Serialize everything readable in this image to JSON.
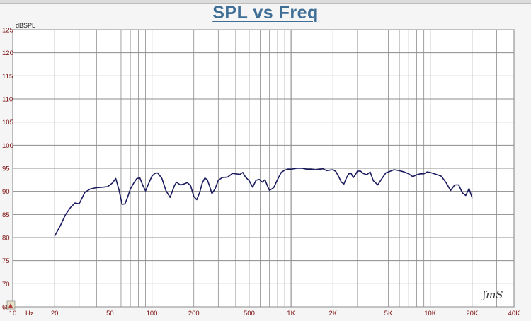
{
  "page": {
    "title": "SPL vs Freq",
    "watermark": "LMS"
  },
  "chart_data": {
    "type": "line",
    "title": "SPL vs Freq",
    "xlabel": "Hz",
    "ylabel": "dBSPL",
    "x_scale": "log",
    "xlim": [
      10,
      40000
    ],
    "ylim": [
      65,
      125
    ],
    "grid": true,
    "x_ticks": [
      10,
      20,
      50,
      100,
      200,
      500,
      1000,
      2000,
      5000,
      10000,
      20000,
      40000
    ],
    "x_tick_labels": [
      "10",
      "20",
      "50",
      "100",
      "200",
      "500",
      "1K",
      "2K",
      "5K",
      "10K",
      "20K",
      "40K"
    ],
    "y_ticks": [
      65,
      70,
      75,
      80,
      85,
      90,
      95,
      100,
      105,
      110,
      115,
      120,
      125
    ],
    "y_tick_labels": [
      "65",
      "70",
      "75",
      "80",
      "85",
      "90",
      "95",
      "100",
      "105",
      "110",
      "115",
      "120",
      "125"
    ],
    "colors": {
      "line": "#1a1a5e",
      "grid": "#8c8c8c",
      "ticks": "#7a0c0c",
      "title": "#3f6e96",
      "plot_bg": "#ffffff"
    },
    "series": [
      {
        "x": [
          20,
          22,
          24,
          26,
          28,
          30,
          33,
          36,
          40,
          44,
          48,
          52,
          55,
          58,
          61,
          64,
          67,
          70,
          74,
          78,
          82,
          86,
          90,
          95,
          100,
          105,
          110,
          118,
          126,
          135,
          145,
          150,
          160,
          170,
          180,
          190,
          200,
          210,
          220,
          230,
          240,
          250,
          260,
          270,
          285,
          300,
          320,
          350,
          380,
          400,
          430,
          450,
          470,
          500,
          530,
          560,
          590,
          620,
          650,
          680,
          700,
          750,
          800,
          850,
          900,
          950,
          1000,
          1100,
          1200,
          1300,
          1400,
          1500,
          1600,
          1700,
          1800,
          1900,
          2000,
          2100,
          2200,
          2300,
          2400,
          2500,
          2600,
          2700,
          2800,
          2900,
          3000,
          3150,
          3300,
          3500,
          3700,
          3900,
          4200,
          4500,
          4800,
          5000,
          5500,
          6000,
          6500,
          7000,
          7500,
          8000,
          8500,
          9000,
          9500,
          10000,
          11000,
          12000,
          13000,
          14000,
          15000,
          16000,
          17000,
          18000,
          19000,
          20000
        ],
        "y": [
          80.3,
          82.6,
          85.0,
          86.5,
          87.5,
          87.3,
          89.8,
          90.5,
          90.8,
          90.9,
          91.0,
          91.8,
          92.8,
          90.3,
          87.2,
          87.3,
          88.8,
          90.5,
          91.8,
          92.8,
          92.9,
          91.3,
          90.1,
          91.8,
          93.3,
          93.9,
          94.0,
          92.8,
          90.2,
          88.7,
          91.2,
          92.0,
          91.4,
          91.6,
          91.9,
          91.2,
          88.9,
          88.2,
          89.7,
          91.8,
          92.9,
          92.5,
          91.1,
          89.5,
          90.6,
          92.4,
          93.0,
          93.1,
          93.9,
          93.8,
          93.7,
          94.1,
          93.1,
          92.3,
          90.9,
          92.4,
          92.6,
          92.0,
          92.5,
          91.0,
          90.2,
          90.8,
          92.6,
          94.1,
          94.6,
          94.8,
          94.8,
          95.0,
          95.0,
          94.8,
          94.8,
          94.7,
          94.8,
          94.9,
          94.5,
          94.6,
          94.7,
          94.3,
          93.2,
          92.0,
          91.6,
          92.9,
          93.8,
          93.9,
          93.0,
          93.6,
          94.4,
          94.4,
          93.9,
          93.6,
          94.2,
          92.3,
          91.4,
          92.8,
          94.0,
          94.2,
          94.7,
          94.5,
          94.2,
          93.8,
          93.2,
          93.6,
          93.8,
          93.8,
          94.2,
          94.1,
          93.7,
          93.3,
          91.9,
          90.2,
          91.4,
          91.4,
          89.7,
          89.1,
          90.6,
          88.6
        ]
      }
    ]
  }
}
